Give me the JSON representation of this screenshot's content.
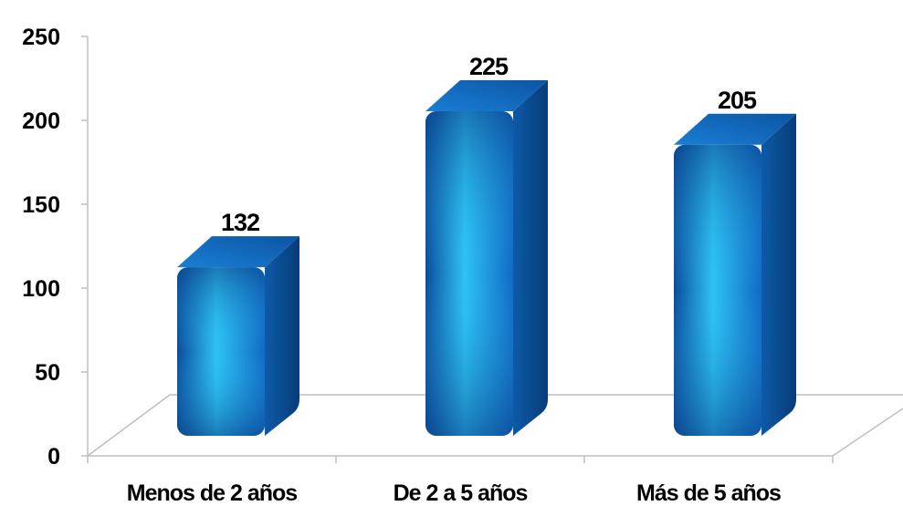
{
  "chart_data": {
    "type": "bar",
    "categories": [
      "Menos de 2 años",
      "De 2 a 5 años",
      "Más de 5 años"
    ],
    "values": [
      132,
      225,
      205
    ],
    "data_labels": [
      "132",
      "225",
      "205"
    ],
    "yticks": [
      "0",
      "50",
      "100",
      "150",
      "200",
      "250"
    ],
    "ylim": [
      0,
      250
    ],
    "grid": false,
    "legend": "none",
    "style": "3d-cylinder",
    "colors": {
      "bar_dark": "#0a4c9a",
      "bar_mid": "#1e8be0",
      "bar_light": "#2ec3f5",
      "bar_side": "#0d5aa8",
      "bar_top": "#1565c0",
      "axis": "#bfbfbf"
    }
  }
}
